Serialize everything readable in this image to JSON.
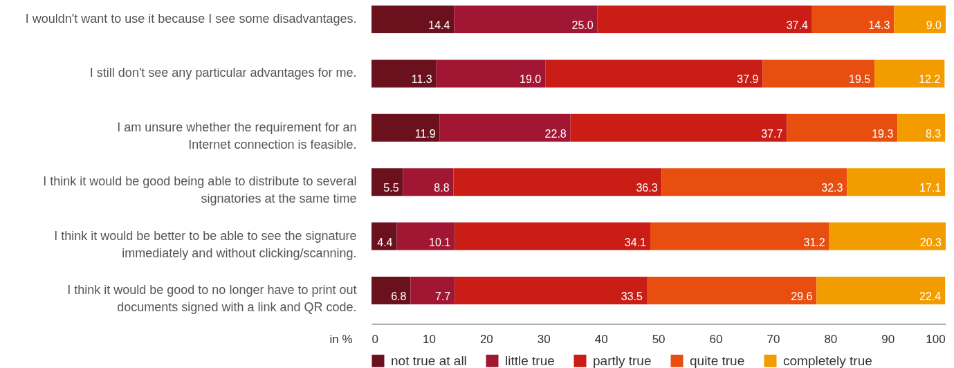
{
  "chart_data": {
    "type": "bar",
    "orientation": "horizontal",
    "stacked": true,
    "categories": [
      "I wouldn't want to use it because I see some disadvantages.",
      "I still don't see any particular advantages for me.",
      "I am unsure whether the requirement for an\nInternet connection is feasible.",
      "I think it would be good being able to distribute to several\nsignatories at the same time",
      "I think it would be better to be able to see the signature\nimmediately and without clicking/scanning.",
      "I think it would be good to no longer have to print out\ndocuments signed with a link and QR code."
    ],
    "series": [
      {
        "name": "not true at all",
        "color": "#6b111e",
        "values": [
          14.4,
          11.3,
          11.9,
          5.5,
          4.4,
          6.8
        ],
        "value_labels": [
          "14.4",
          "11.3",
          "11.9",
          "5.5",
          "4.4",
          "6.8"
        ]
      },
      {
        "name": "little true",
        "color": "#a11733",
        "values": [
          25.0,
          19.0,
          22.8,
          8.8,
          10.1,
          7.7
        ],
        "value_labels": [
          "25.0",
          "19.0",
          "22.8",
          "8.8",
          "10.1",
          "7.7"
        ]
      },
      {
        "name": "partly true",
        "color": "#c91d16",
        "values": [
          37.4,
          37.9,
          37.7,
          36.3,
          34.1,
          33.5
        ],
        "value_labels": [
          "37.4",
          "37.9",
          "37.7",
          "36.3",
          "34.1",
          "33.5"
        ]
      },
      {
        "name": "quite true",
        "color": "#e84e0f",
        "values": [
          14.3,
          19.5,
          19.3,
          32.3,
          31.2,
          29.6
        ],
        "value_labels": [
          "14.3",
          "19.5",
          "19.3",
          "32.3",
          "31.2",
          "29.6"
        ]
      },
      {
        "name": "completely true",
        "color": "#f39c00",
        "values": [
          9.0,
          12.2,
          8.3,
          17.1,
          20.3,
          22.4
        ],
        "value_labels": [
          "9.0",
          "12.2",
          "8.3",
          "17.1",
          "20.3",
          "22.4"
        ]
      }
    ],
    "xlabel": "in %",
    "xlim": [
      0,
      100.1
    ],
    "xticks": [
      0,
      10,
      20,
      30,
      40,
      50,
      60,
      70,
      80,
      90,
      100
    ],
    "grid": false,
    "legend": "bottom"
  }
}
